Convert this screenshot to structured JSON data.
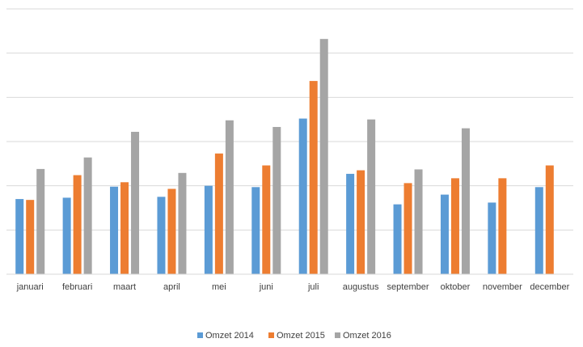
{
  "chart_data": {
    "type": "bar",
    "title": "",
    "xlabel": "",
    "ylabel": "",
    "ylim": [
      0,
      6
    ],
    "grid": true,
    "legend_position": "bottom",
    "categories": [
      "januari",
      "februari",
      "maart",
      "april",
      "mei",
      "juni",
      "juli",
      "augustus",
      "september",
      "oktober",
      "november",
      "december"
    ],
    "series": [
      {
        "name": "Omzet 2014",
        "color": "#5b9bd5",
        "values": [
          1.7,
          1.73,
          1.98,
          1.75,
          2.0,
          1.97,
          3.52,
          2.27,
          1.58,
          1.8,
          1.62,
          1.97
        ]
      },
      {
        "name": "Omzet 2015",
        "color": "#ed7d31",
        "values": [
          1.68,
          2.24,
          2.08,
          1.93,
          2.73,
          2.46,
          4.37,
          2.35,
          2.06,
          2.17,
          2.17,
          2.46
        ]
      },
      {
        "name": "Omzet 2016",
        "color": "#a5a5a5",
        "values": [
          2.38,
          2.64,
          3.22,
          2.29,
          3.48,
          3.33,
          5.32,
          3.5,
          2.37,
          3.3,
          null,
          null
        ]
      }
    ]
  }
}
